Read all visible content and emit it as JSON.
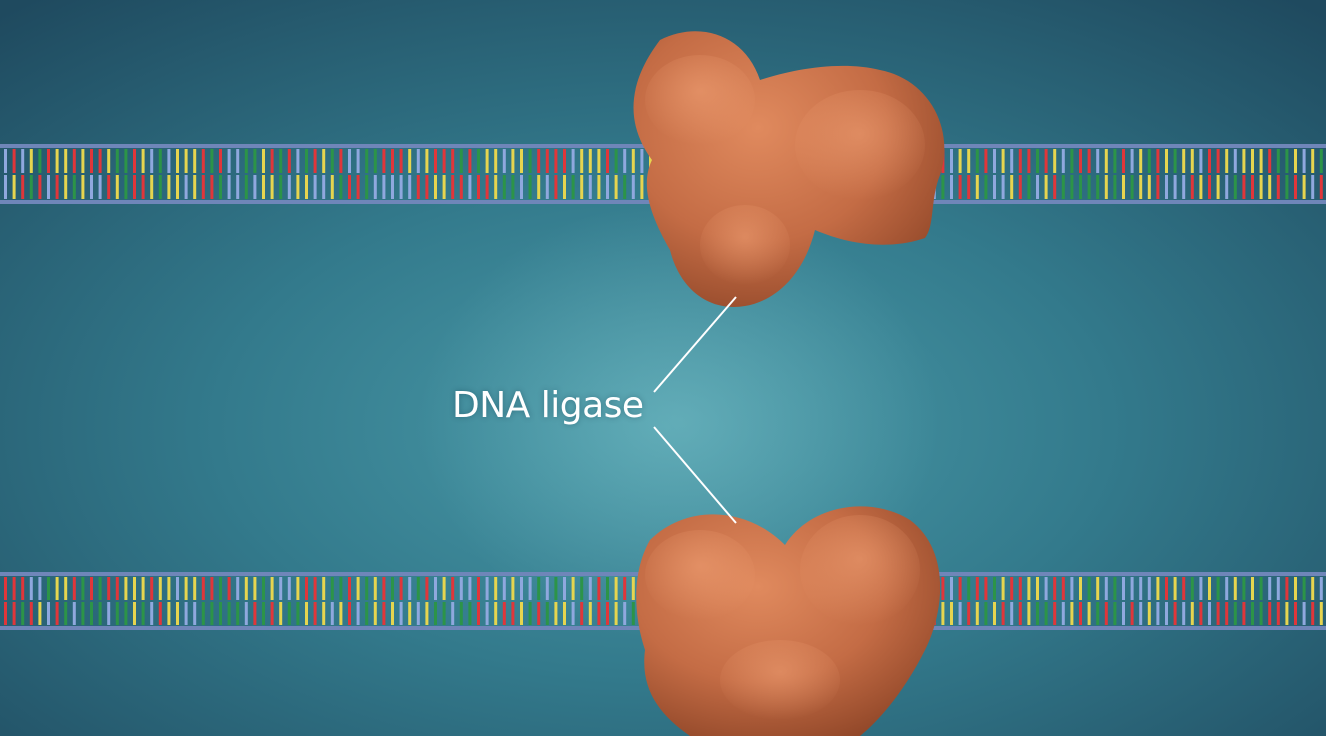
{
  "label": {
    "text": "DNA ligase"
  },
  "colors": {
    "background_center": "#3f8e9c",
    "background_edge": "#1e4a5e",
    "backbone": "#6f86b9",
    "protein": "#c8714b",
    "base_colors": [
      "#e0363a",
      "#e6d54f",
      "#2c9448",
      "#8fa8de"
    ],
    "callout_line": "#ffffff",
    "label_text": "#ffffff"
  },
  "objects": {
    "dna_strands": 2,
    "proteins": 2
  }
}
